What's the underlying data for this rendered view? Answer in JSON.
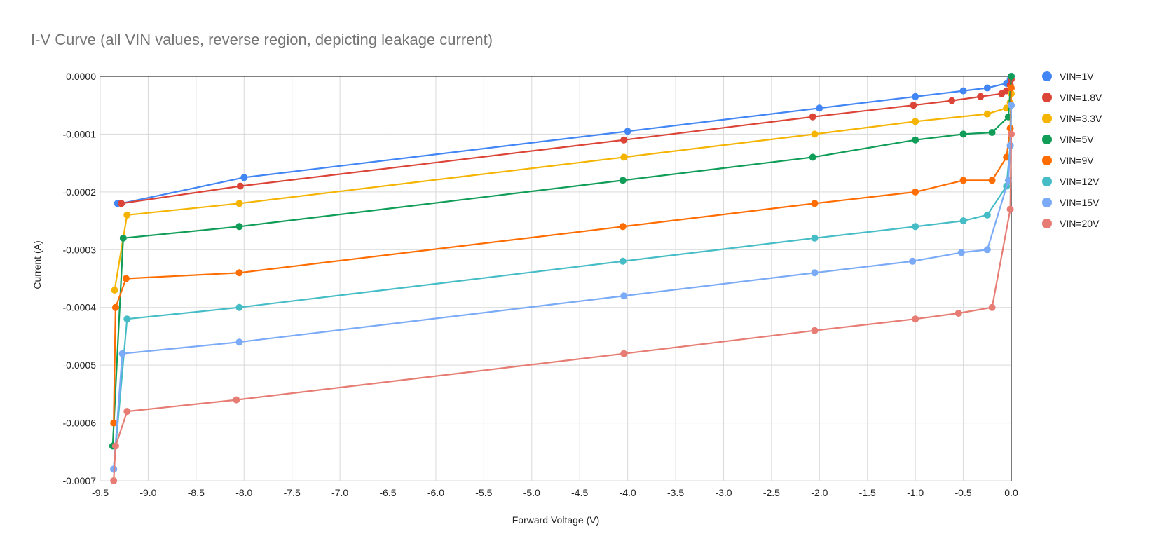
{
  "chart_data": {
    "type": "line",
    "title": "I-V Curve (all VIN values, reverse region, depicting leakage current)",
    "xlabel": "Forward Voltage (V)",
    "ylabel": "Current (A)",
    "xlim": [
      -9.5,
      0.0
    ],
    "ylim": [
      -0.0007,
      0.0
    ],
    "x_ticks": [
      "-9.5",
      "-9.0",
      "-8.5",
      "-8.0",
      "-7.5",
      "-7.0",
      "-6.5",
      "-6.0",
      "-5.5",
      "-5.0",
      "-4.5",
      "-4.0",
      "-3.5",
      "-3.0",
      "-2.5",
      "-2.0",
      "-1.5",
      "-1.0",
      "-0.5",
      "0.0"
    ],
    "y_ticks": [
      "0.0000",
      "-0.0001",
      "-0.0002",
      "-0.0003",
      "-0.0004",
      "-0.0005",
      "-0.0006",
      "-0.0007"
    ],
    "grid": true,
    "legend_position": "right",
    "series": [
      {
        "name": "VIN=1V",
        "color": "#4285f4",
        "points": [
          [
            -9.32,
            -0.00022
          ],
          [
            -9.28,
            -0.00022
          ],
          [
            -8.0,
            -0.000175
          ],
          [
            -4.0,
            -9.5e-05
          ],
          [
            -2.0,
            -5.5e-05
          ],
          [
            -1.0,
            -3.5e-05
          ],
          [
            -0.5,
            -2.5e-05
          ],
          [
            -0.25,
            -2e-05
          ],
          [
            -0.05,
            -1.2e-05
          ],
          [
            -0.01,
            -5e-06
          ],
          [
            0.0,
            0.0
          ]
        ]
      },
      {
        "name": "VIN=1.8V",
        "color": "#db4437",
        "points": [
          [
            -9.28,
            -0.00022
          ],
          [
            -8.04,
            -0.00019
          ],
          [
            -4.04,
            -0.00011
          ],
          [
            -2.07,
            -7e-05
          ],
          [
            -1.02,
            -5e-05
          ],
          [
            -0.62,
            -4.2e-05
          ],
          [
            -0.32,
            -3.5e-05
          ],
          [
            -0.1,
            -3e-05
          ],
          [
            -0.05,
            -2.5e-05
          ],
          [
            -0.01,
            -1.5e-05
          ],
          [
            0.0,
            -5e-06
          ]
        ]
      },
      {
        "name": "VIN=3.3V",
        "color": "#f4b400",
        "points": [
          [
            -9.35,
            -0.00037
          ],
          [
            -9.22,
            -0.00024
          ],
          [
            -8.05,
            -0.00022
          ],
          [
            -4.04,
            -0.00014
          ],
          [
            -2.05,
            -0.0001
          ],
          [
            -1.0,
            -7.8e-05
          ],
          [
            -0.25,
            -6.5e-05
          ],
          [
            -0.05,
            -5.5e-05
          ],
          [
            -0.01,
            -4.5e-05
          ],
          [
            0.0,
            -3e-05
          ]
        ]
      },
      {
        "name": "VIN=5V",
        "color": "#0f9d58",
        "points": [
          [
            -9.37,
            -0.00064
          ],
          [
            -9.26,
            -0.00028
          ],
          [
            -8.05,
            -0.00026
          ],
          [
            -4.05,
            -0.00018
          ],
          [
            -2.07,
            -0.00014
          ],
          [
            -1.0,
            -0.00011
          ],
          [
            -0.5,
            -0.0001
          ],
          [
            -0.2,
            -9.7e-05
          ],
          [
            -0.03,
            -7e-05
          ],
          [
            0.0,
            0.0
          ]
        ]
      },
      {
        "name": "VIN=9V",
        "color": "#ff6d01",
        "points": [
          [
            -9.36,
            -0.0006
          ],
          [
            -9.34,
            -0.0004
          ],
          [
            -9.23,
            -0.00035
          ],
          [
            -8.05,
            -0.00034
          ],
          [
            -4.05,
            -0.00026
          ],
          [
            -2.05,
            -0.00022
          ],
          [
            -1.0,
            -0.0002
          ],
          [
            -0.5,
            -0.00018
          ],
          [
            -0.2,
            -0.00018
          ],
          [
            -0.05,
            -0.00014
          ],
          [
            -0.01,
            -9e-05
          ],
          [
            0.0,
            -2e-05
          ]
        ]
      },
      {
        "name": "VIN=12V",
        "color": "#46bdc6",
        "points": [
          [
            -9.36,
            -0.00068
          ],
          [
            -9.22,
            -0.00042
          ],
          [
            -8.05,
            -0.0004
          ],
          [
            -4.05,
            -0.00032
          ],
          [
            -2.05,
            -0.00028
          ],
          [
            -1.0,
            -0.00026
          ],
          [
            -0.5,
            -0.00025
          ],
          [
            -0.25,
            -0.00024
          ],
          [
            -0.05,
            -0.00019
          ],
          [
            -0.01,
            -0.00012
          ],
          [
            0.0,
            -5e-05
          ]
        ]
      },
      {
        "name": "VIN=15V",
        "color": "#7baaf7",
        "points": [
          [
            -9.36,
            -0.00068
          ],
          [
            -9.27,
            -0.00048
          ],
          [
            -8.05,
            -0.00046
          ],
          [
            -4.04,
            -0.00038
          ],
          [
            -2.05,
            -0.00034
          ],
          [
            -1.03,
            -0.00032
          ],
          [
            -0.52,
            -0.000305
          ],
          [
            -0.25,
            -0.0003
          ],
          [
            -0.03,
            -0.00018
          ],
          [
            -0.01,
            -0.00012
          ],
          [
            0.0,
            -5e-05
          ]
        ]
      },
      {
        "name": "VIN=20V",
        "color": "#e67c73",
        "points": [
          [
            -9.36,
            -0.0007
          ],
          [
            -9.34,
            -0.00064
          ],
          [
            -9.22,
            -0.00058
          ],
          [
            -8.08,
            -0.00056
          ],
          [
            -4.04,
            -0.00048
          ],
          [
            -2.05,
            -0.00044
          ],
          [
            -1.0,
            -0.00042
          ],
          [
            -0.55,
            -0.00041
          ],
          [
            -0.2,
            -0.0004
          ],
          [
            -0.01,
            -0.00023
          ],
          [
            0.0,
            -0.0001
          ]
        ]
      }
    ]
  }
}
